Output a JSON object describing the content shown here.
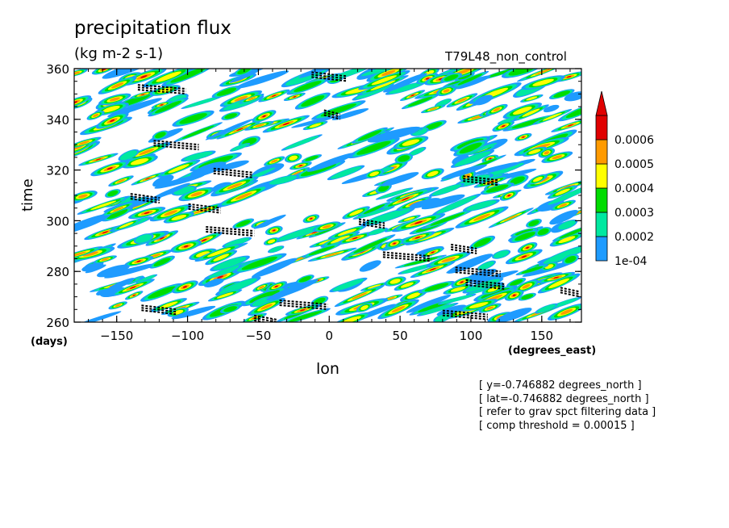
{
  "chart_data": {
    "type": "heatmap",
    "title": "precipitation flux",
    "units": "(kg m-2 s-1)",
    "run_label": "T79L48_non_control",
    "xlabel": "lon",
    "ylabel": "time",
    "x_unit": "(degrees_east)",
    "y_unit": "(days)",
    "xlim": [
      -180,
      178
    ],
    "ylim": [
      260,
      360
    ],
    "xticks": [
      -150,
      -100,
      -50,
      0,
      50,
      100,
      150
    ],
    "yticks": [
      260,
      280,
      300,
      320,
      340,
      360
    ],
    "colorbar": {
      "levels": [
        "1e-04",
        "0.0002",
        "0.0003",
        "0.0004",
        "0.0005",
        "0.0006"
      ],
      "colors": [
        "#1e9bff",
        "#00e8a0",
        "#00dc00",
        "#ffff00",
        "#ff9a00",
        "#e00000"
      ],
      "extend": "max"
    },
    "pattern": "westward-tilted streaks of precipitation flux with black dotted composite markers",
    "notes": [
      "[ y=-0.746882 degrees_north ]",
      "[ lat=-0.746882 degrees_north ]",
      "[ refer to grav spct filtering data ]",
      "[ comp threshold = 0.00015 ]"
    ]
  }
}
